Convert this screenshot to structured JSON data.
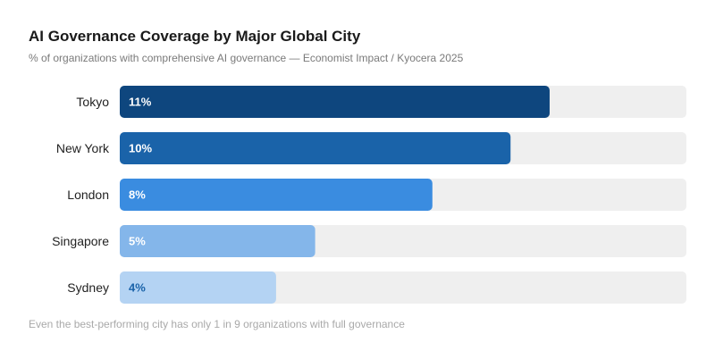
{
  "header": {
    "title": "AI Governance Coverage by Major Global City",
    "subtitle": "% of organizations with comprehensive AI governance — Economist Impact / Kyocera 2025"
  },
  "footnote": "Even the best-performing city has only 1 in 9 organizations with full governance",
  "chart_data": {
    "type": "bar",
    "orientation": "horizontal",
    "title": "AI Governance Coverage by Major Global City",
    "subtitle": "% of organizations with comprehensive AI governance — Economist Impact / Kyocera 2025",
    "categories": [
      "Tokyo",
      "New York",
      "London",
      "Singapore",
      "Sydney"
    ],
    "values": [
      11,
      10,
      8,
      5,
      4
    ],
    "value_labels": [
      "11%",
      "10%",
      "8%",
      "5%",
      "4%"
    ],
    "xlim": [
      0,
      14.5
    ],
    "grid": false,
    "legend": "none"
  },
  "colors": {
    "bars": [
      "#0e467e",
      "#1a63a9",
      "#3a8ce0",
      "#84b6ea",
      "#b4d3f3"
    ],
    "labels_on_bar": [
      "#ffffff",
      "#ffffff",
      "#ffffff",
      "#ffffff",
      "#1a63a9"
    ],
    "track": "#efefef"
  }
}
